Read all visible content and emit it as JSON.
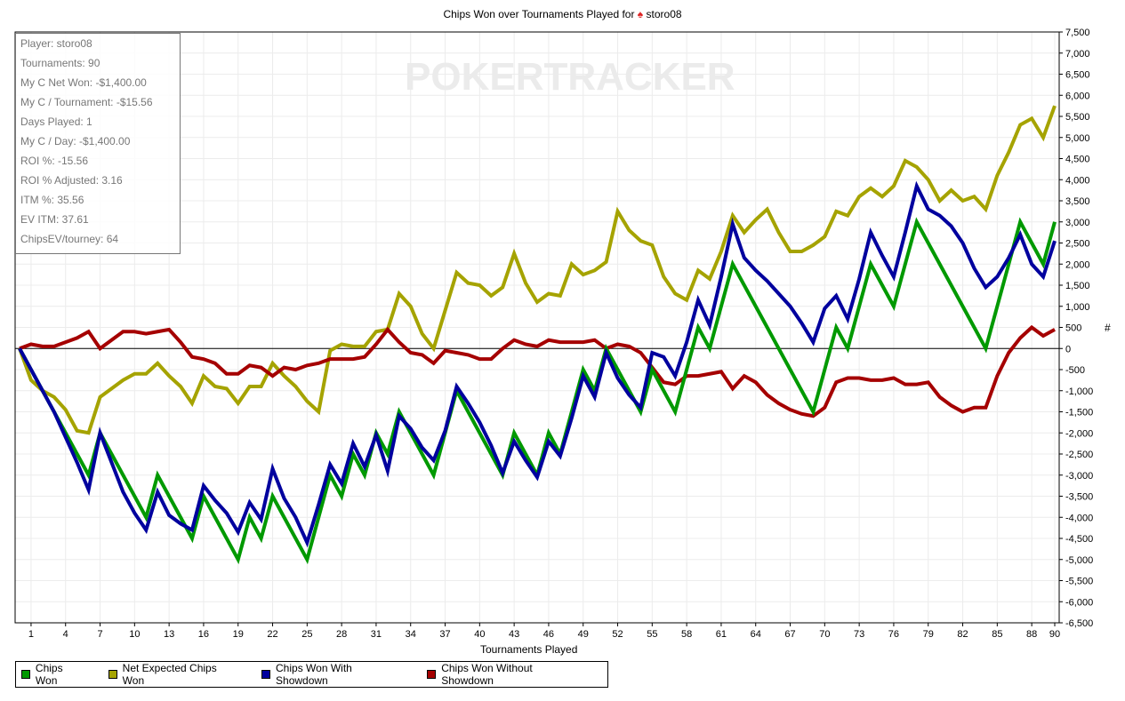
{
  "chart_data": {
    "type": "line",
    "title": "Chips Won over Tournaments Played for",
    "player": "storo08",
    "xlabel": "Tournaments Played",
    "ylabel": "#",
    "xlim": [
      0,
      90
    ],
    "ylim": [
      -6500,
      7500
    ],
    "y_step": 500,
    "x_ticks": [
      1,
      4,
      7,
      10,
      13,
      16,
      19,
      22,
      25,
      28,
      31,
      34,
      37,
      40,
      43,
      46,
      49,
      52,
      55,
      58,
      61,
      64,
      67,
      70,
      73,
      76,
      79,
      82,
      85,
      88,
      90
    ],
    "grid": true,
    "legend_position": "bottom-left",
    "watermark": "POKERTRACKER",
    "x": [
      0,
      1,
      2,
      3,
      4,
      5,
      6,
      7,
      8,
      9,
      10,
      11,
      12,
      13,
      14,
      15,
      16,
      17,
      18,
      19,
      20,
      21,
      22,
      23,
      24,
      25,
      26,
      27,
      28,
      29,
      30,
      31,
      32,
      33,
      34,
      35,
      36,
      37,
      38,
      39,
      40,
      41,
      42,
      43,
      44,
      45,
      46,
      47,
      48,
      49,
      50,
      51,
      52,
      53,
      54,
      55,
      56,
      57,
      58,
      59,
      60,
      61,
      62,
      63,
      64,
      65,
      66,
      67,
      68,
      69,
      70,
      71,
      72,
      73,
      74,
      75,
      76,
      77,
      78,
      79,
      80,
      81,
      82,
      83,
      84,
      85,
      86,
      87,
      88,
      89,
      90
    ],
    "series": [
      {
        "name": "Net Expected Chips Won",
        "color": "#a5a300",
        "values": [
          0,
          -750,
          -1000,
          -1150,
          -1450,
          -1950,
          -2000,
          -1150,
          -950,
          -750,
          -600,
          -600,
          -350,
          -650,
          -900,
          -1300,
          -650,
          -900,
          -950,
          -1300,
          -900,
          -900,
          -350,
          -650,
          -900,
          -1250,
          -1500,
          -50,
          100,
          50,
          50,
          400,
          450,
          1300,
          1000,
          350,
          0,
          900,
          1800,
          1550,
          1500,
          1250,
          1450,
          2250,
          1550,
          1100,
          1300,
          1250,
          2000,
          1750,
          1850,
          2050,
          3250,
          2800,
          2550,
          2450,
          1700,
          1300,
          1150,
          1850,
          1650,
          2300,
          3150,
          2750,
          3050,
          3300,
          2750,
          2300,
          2300,
          2450,
          2650,
          3250,
          3150,
          3600,
          3800,
          3600,
          3850,
          4450,
          4300,
          4000,
          3500,
          3750,
          3500,
          3600,
          3300,
          4100,
          4650,
          5300,
          5450,
          5000,
          5750
        ]
      },
      {
        "name": "Chips Won Without Showdown",
        "color": "#a50000",
        "values": [
          0,
          100,
          50,
          50,
          150,
          250,
          400,
          0,
          200,
          400,
          400,
          350,
          400,
          450,
          150,
          -200,
          -250,
          -350,
          -600,
          -600,
          -400,
          -450,
          -650,
          -450,
          -500,
          -400,
          -350,
          -250,
          -250,
          -250,
          -200,
          100,
          450,
          150,
          -100,
          -150,
          -350,
          -50,
          -100,
          -150,
          -250,
          -250,
          0,
          200,
          100,
          50,
          200,
          150,
          150,
          150,
          200,
          0,
          100,
          50,
          -100,
          -450,
          -800,
          -850,
          -650,
          -650,
          -600,
          -550,
          -950,
          -650,
          -800,
          -1100,
          -1300,
          -1450,
          -1550,
          -1600,
          -1400,
          -800,
          -700,
          -700,
          -750,
          -750,
          -700,
          -850,
          -850,
          -800,
          -1150,
          -1350,
          -1500,
          -1400,
          -1400,
          -650,
          -100,
          250,
          500,
          300,
          450
        ]
      },
      {
        "name": "Chips Won",
        "color": "#009900",
        "values": [
          0,
          -500,
          -1000,
          -1500,
          -2000,
          -2500,
          -3000,
          -2000,
          -2500,
          -3000,
          -3500,
          -4000,
          -3000,
          -3500,
          -4000,
          -4500,
          -3500,
          -4000,
          -4500,
          -5000,
          -4000,
          -4500,
          -3500,
          -4000,
          -4500,
          -5000,
          -4000,
          -3000,
          -3500,
          -2500,
          -3000,
          -2000,
          -2500,
          -1500,
          -2000,
          -2500,
          -3000,
          -2000,
          -1000,
          -1500,
          -2000,
          -2500,
          -3000,
          -2000,
          -2500,
          -3000,
          -2000,
          -2500,
          -1500,
          -500,
          -1000,
          0,
          -500,
          -1000,
          -1500,
          -500,
          -1000,
          -1500,
          -500,
          500,
          0,
          1000,
          2000,
          1500,
          1000,
          500,
          0,
          -500,
          -1000,
          -1500,
          -500,
          500,
          0,
          1000,
          2000,
          1500,
          1000,
          2000,
          3000,
          2500,
          2000,
          1500,
          1000,
          500,
          0,
          1000,
          2000,
          3000,
          2500,
          2000,
          3000
        ]
      },
      {
        "name": "Chips Won With Showdown",
        "color": "#00009e",
        "values": [
          0,
          -500,
          -1000,
          -1500,
          -2100,
          -2700,
          -3350,
          -2000,
          -2700,
          -3400,
          -3900,
          -4300,
          -3400,
          -3950,
          -4150,
          -4300,
          -3250,
          -3600,
          -3900,
          -4350,
          -3650,
          -4050,
          -2850,
          -3550,
          -4000,
          -4600,
          -3700,
          -2750,
          -3200,
          -2250,
          -2800,
          -2050,
          -2900,
          -1600,
          -1900,
          -2350,
          -2650,
          -1950,
          -900,
          -1300,
          -1750,
          -2300,
          -2950,
          -2200,
          -2650,
          -3050,
          -2200,
          -2550,
          -1650,
          -650,
          -1150,
          -100,
          -700,
          -1100,
          -1400,
          -100,
          -200,
          -650,
          150,
          1150,
          550,
          1700,
          2950,
          2150,
          1850,
          1600,
          1300,
          1000,
          600,
          150,
          950,
          1250,
          700,
          1650,
          2750,
          2200,
          1700,
          2750,
          3850,
          3300,
          3150,
          2900,
          2500,
          1900,
          1450,
          1700,
          2150,
          2700,
          2000,
          1700,
          2550
        ]
      }
    ],
    "legend": [
      {
        "label": "Chips Won",
        "color": "#009900"
      },
      {
        "label": "Net Expected Chips Won",
        "color": "#a5a300"
      },
      {
        "label": "Chips Won With Showdown",
        "color": "#00009e"
      },
      {
        "label": "Chips Won Without Showdown",
        "color": "#a50000"
      }
    ]
  },
  "stats": [
    "Player: storo08",
    "Tournaments: 90",
    "My C Net Won: -$1,400.00",
    "My C / Tournament: -$15.56",
    "Days Played: 1",
    "My C / Day: -$1,400.00",
    "ROI %: -15.56",
    "ROI % Adjusted: 3.16",
    "ITM %: 35.56",
    "EV ITM: 37.61",
    "ChipsEV/tourney: 64"
  ]
}
